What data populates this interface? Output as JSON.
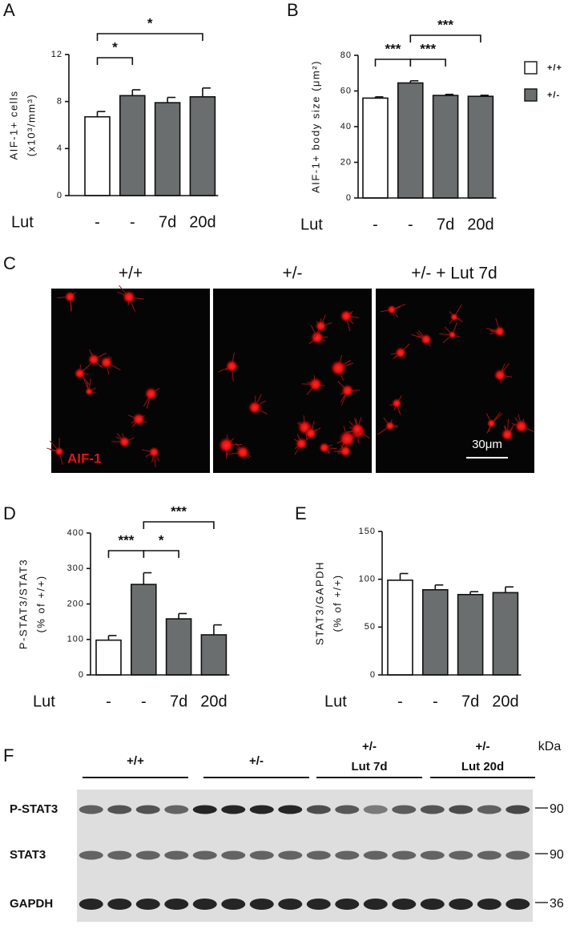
{
  "chart_data": [
    {
      "type": "bar",
      "panel": "A",
      "ylabel": [
        "AIF-1+ cells",
        "(x10³/mm³)"
      ],
      "xlabel": "Lut",
      "categories": [
        "-",
        "-",
        "7d",
        "20d"
      ],
      "series": [
        {
          "name": "+/+",
          "color": "#ffffff",
          "values": [
            6.7,
            null,
            null,
            null
          ],
          "errors": [
            0.45,
            null,
            null,
            null
          ]
        },
        {
          "name": "+/-",
          "color": "#6b6e6e",
          "values": [
            null,
            8.5,
            7.9,
            8.4
          ],
          "errors": [
            null,
            0.5,
            0.45,
            0.75
          ]
        }
      ],
      "ylim": [
        0,
        12
      ],
      "yticks": [
        0,
        4,
        8,
        12
      ],
      "legend": false,
      "significance": [
        {
          "from": 0,
          "to": 1,
          "label": "*"
        },
        {
          "from": 0,
          "to": 3,
          "label": "*"
        }
      ]
    },
    {
      "type": "bar",
      "panel": "B",
      "ylabel": [
        "AIF-1+ body size (μm²)"
      ],
      "xlabel": "Lut",
      "categories": [
        "-",
        "-",
        "7d",
        "20d"
      ],
      "series": [
        {
          "name": "+/+",
          "color": "#ffffff",
          "values": [
            56,
            null,
            null,
            null
          ],
          "errors": [
            0.7,
            null,
            null,
            null
          ]
        },
        {
          "name": "+/-",
          "color": "#6b6e6e",
          "values": [
            null,
            64.5,
            57.5,
            57
          ],
          "errors": [
            null,
            1.2,
            0.6,
            0.6
          ]
        }
      ],
      "ylim": [
        0,
        80
      ],
      "yticks": [
        0,
        20,
        40,
        60,
        80
      ],
      "legend": "right",
      "significance": [
        {
          "from": 0,
          "to": 1,
          "label": "***"
        },
        {
          "from": 1,
          "to": 2,
          "label": "***"
        },
        {
          "from": 1,
          "to": 3,
          "label": "***"
        }
      ]
    },
    {
      "type": "bar",
      "panel": "D",
      "ylabel": [
        "P-STAT3/STAT3",
        "(% of +/+)"
      ],
      "xlabel": "Lut",
      "categories": [
        "-",
        "-",
        "7d",
        "20d"
      ],
      "series": [
        {
          "name": "+/+",
          "color": "#ffffff",
          "values": [
            98,
            null,
            null,
            null
          ],
          "errors": [
            13,
            null,
            null,
            null
          ]
        },
        {
          "name": "+/-",
          "color": "#6b6e6e",
          "values": [
            null,
            255,
            158,
            113
          ],
          "errors": [
            null,
            33,
            15,
            28
          ]
        }
      ],
      "ylim": [
        0,
        400
      ],
      "yticks": [
        0,
        100,
        200,
        300,
        400
      ],
      "legend": false,
      "significance": [
        {
          "from": 0,
          "to": 1,
          "label": "***"
        },
        {
          "from": 1,
          "to": 2,
          "label": "*"
        },
        {
          "from": 1,
          "to": 3,
          "label": "***"
        }
      ]
    },
    {
      "type": "bar",
      "panel": "E",
      "ylabel": [
        "STAT3/GAPDH",
        "(% of +/+)"
      ],
      "xlabel": "Lut",
      "categories": [
        "-",
        "-",
        "7d",
        "20d"
      ],
      "series": [
        {
          "name": "+/+",
          "color": "#ffffff",
          "values": [
            99,
            null,
            null,
            null
          ],
          "errors": [
            7,
            null,
            null,
            null
          ]
        },
        {
          "name": "+/-",
          "color": "#6b6e6e",
          "values": [
            null,
            89,
            84,
            86
          ],
          "errors": [
            null,
            5,
            3,
            6
          ]
        }
      ],
      "ylim": [
        0,
        150
      ],
      "yticks": [
        0,
        50,
        100,
        150
      ],
      "legend": false,
      "significance": []
    }
  ],
  "micrographs": {
    "panel": "C",
    "titles": [
      "+/+",
      "+/-",
      "+/- + Lut 7d"
    ],
    "stain_label": "AIF-1",
    "scale_bar": "30μm"
  },
  "western_blot": {
    "panel": "F",
    "unit": "kDa",
    "groups": [
      {
        "lines": [
          "+/+"
        ]
      },
      {
        "lines": [
          "+/-"
        ]
      },
      {
        "lines": [
          "+/-",
          "Lut 7d"
        ]
      },
      {
        "lines": [
          "+/-",
          "Lut 20d"
        ]
      }
    ],
    "rows": [
      {
        "label": "P-STAT3",
        "marker": "90"
      },
      {
        "label": "STAT3",
        "marker": "90"
      },
      {
        "label": "GAPDH",
        "marker": "36"
      }
    ]
  }
}
